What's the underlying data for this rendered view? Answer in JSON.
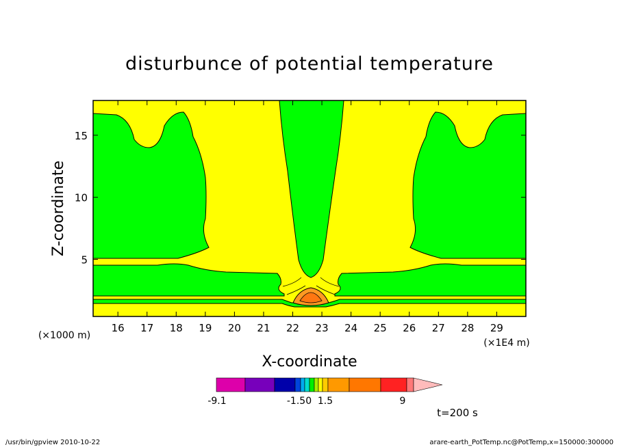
{
  "chart_data": {
    "type": "contour",
    "title": "disturbunce of potential temperature",
    "xlabel": "X-coordinate",
    "ylabel": "Z-coordinate",
    "x_unit": "(×1E4 m)",
    "y_unit": "(×1000 m)",
    "xlim": [
      15.15,
      30
    ],
    "ylim": [
      0.4,
      17.8
    ],
    "x_ticks": [
      "16",
      "17",
      "18",
      "19",
      "20",
      "21",
      "22",
      "23",
      "24",
      "25",
      "26",
      "27",
      "28",
      "29"
    ],
    "y_ticks": [
      "5",
      "10",
      "15"
    ],
    "colorbar": {
      "labels": [
        "-9.1",
        "-1.50",
        "1.5",
        "9"
      ],
      "colors": [
        "#dd00aa",
        "#7700bb",
        "#0000aa",
        "#0044dd",
        "#00aaee",
        "#00ddcc",
        "#00ee00",
        "#aaee00",
        "#ffff00",
        "#ffcc00",
        "#ff9900",
        "#ff7700",
        "#ff2222",
        "#ff7777",
        "#ffbbbb"
      ]
    },
    "fill_colors": {
      "background": "#ffff00",
      "negative": "#00ff00",
      "positive": "#ff9922",
      "positive_core": "#ff7711"
    },
    "time_label": "t=200 s"
  },
  "footer": {
    "left": "/usr/bin/gpview   2010-10-22",
    "right": "arare-earth_PotTemp.nc@PotTemp,x=150000:300000"
  }
}
